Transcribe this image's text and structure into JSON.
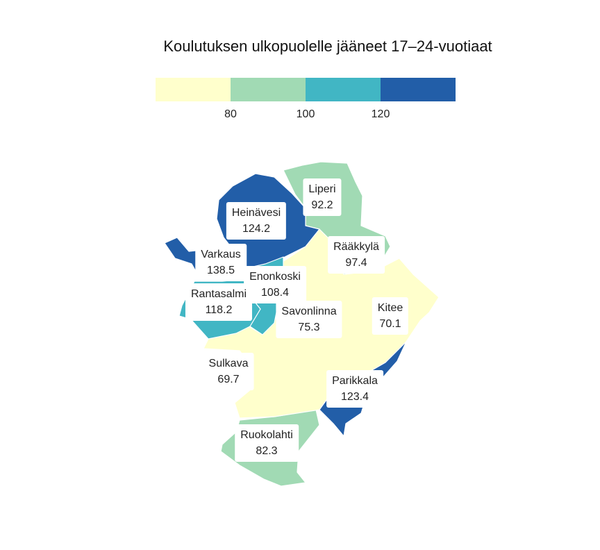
{
  "title": "Koulutuksen ulkopuolelle jääneet 17–24-vuotiaat",
  "legend": {
    "colors": [
      "#ffffcc",
      "#a1dab4",
      "#41b6c4",
      "#225ea8"
    ],
    "ticks": [
      "80",
      "100",
      "120"
    ]
  },
  "regions": [
    {
      "name": "Liperi",
      "value": "92.2",
      "class": "80–100",
      "color": "#a1dab4"
    },
    {
      "name": "Heinävesi",
      "value": "124.2",
      "class": ">120",
      "color": "#225ea8"
    },
    {
      "name": "Rääkkylä",
      "value": "97.4",
      "class": "80–100",
      "color": "#a1dab4"
    },
    {
      "name": "Varkaus",
      "value": "138.5",
      "class": ">120",
      "color": "#225ea8"
    },
    {
      "name": "Enonkoski",
      "value": "108.4",
      "class": "100–120",
      "color": "#41b6c4"
    },
    {
      "name": "Rantasalmi",
      "value": "118.2",
      "class": "100–120",
      "color": "#41b6c4"
    },
    {
      "name": "Savonlinna",
      "value": "75.3",
      "class": "<80",
      "color": "#ffffcc"
    },
    {
      "name": "Kitee",
      "value": "70.1",
      "class": "<80",
      "color": "#ffffcc"
    },
    {
      "name": "Sulkava",
      "value": "69.7",
      "class": "<80",
      "color": "#ffffcc"
    },
    {
      "name": "Parikkala",
      "value": "123.4",
      "class": ">120",
      "color": "#225ea8"
    },
    {
      "name": "Ruokolahti",
      "value": "82.3",
      "class": "80–100",
      "color": "#a1dab4"
    }
  ]
}
